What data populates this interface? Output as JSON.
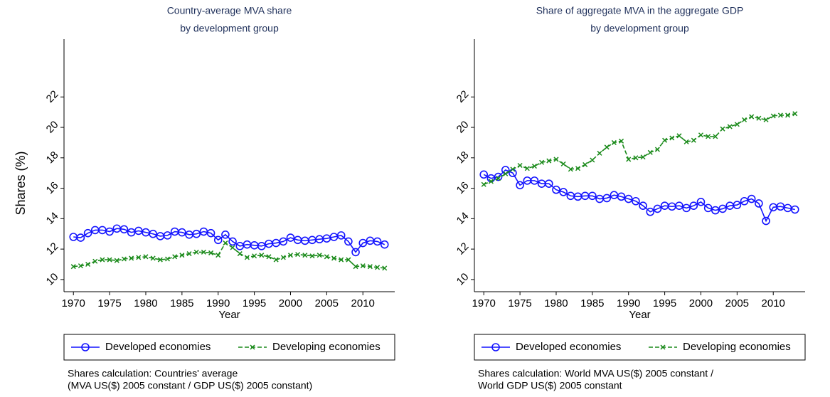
{
  "chart_data": [
    {
      "type": "line",
      "title": "Country-average MVA share",
      "subtitle": "by development group",
      "x_label": "Year",
      "y_label": "Shares (%)",
      "note": [
        "Shares calculation: Countries' average",
        "(MVA US($) 2005 constant / GDP US($) 2005 constant)"
      ],
      "x": [
        1970,
        1971,
        1972,
        1973,
        1974,
        1975,
        1976,
        1977,
        1978,
        1979,
        1980,
        1981,
        1982,
        1983,
        1984,
        1985,
        1986,
        1987,
        1988,
        1989,
        1990,
        1991,
        1992,
        1993,
        1994,
        1995,
        1996,
        1997,
        1998,
        1999,
        2000,
        2001,
        2002,
        2003,
        2004,
        2005,
        2006,
        2007,
        2008,
        2009,
        2010,
        2011,
        2012,
        2013
      ],
      "xlim": [
        1968.7,
        2014.4
      ],
      "xticks": [
        1970,
        1975,
        1980,
        1985,
        1990,
        1995,
        2000,
        2005,
        2010
      ],
      "ylim": [
        9.2,
        25.8
      ],
      "yticks": [
        10,
        12,
        14,
        16,
        18,
        20,
        22
      ],
      "series": [
        {
          "name": "Developed economies",
          "color": "#1414ff",
          "values": [
            12.8,
            12.75,
            13.05,
            13.25,
            13.25,
            13.15,
            13.35,
            13.3,
            13.1,
            13.2,
            13.1,
            13.0,
            12.85,
            12.9,
            13.15,
            13.1,
            12.95,
            13.0,
            13.15,
            13.05,
            12.6,
            12.95,
            12.5,
            12.2,
            12.3,
            12.25,
            12.2,
            12.35,
            12.4,
            12.5,
            12.75,
            12.6,
            12.55,
            12.6,
            12.65,
            12.7,
            12.8,
            12.9,
            12.5,
            11.8,
            12.4,
            12.55,
            12.5,
            12.3
          ]
        },
        {
          "name": "Developing economies",
          "color": "#1a8a1a",
          "values": [
            10.85,
            10.9,
            11.0,
            11.2,
            11.3,
            11.3,
            11.25,
            11.35,
            11.4,
            11.45,
            11.5,
            11.4,
            11.3,
            11.35,
            11.5,
            11.6,
            11.7,
            11.8,
            11.8,
            11.75,
            11.6,
            12.4,
            12.1,
            11.7,
            11.45,
            11.55,
            11.6,
            11.5,
            11.3,
            11.45,
            11.6,
            11.65,
            11.6,
            11.55,
            11.6,
            11.5,
            11.4,
            11.3,
            11.3,
            10.85,
            10.9,
            10.85,
            10.8,
            10.75
          ]
        }
      ]
    },
    {
      "type": "line",
      "title": "Share of aggregate MVA in the aggregate GDP",
      "subtitle": "by development group",
      "x_label": "Year",
      "note": [
        "Shares calculation: World MVA US($) 2005 constant /",
        "World GDP US($) 2005 constant"
      ],
      "x": [
        1970,
        1971,
        1972,
        1973,
        1974,
        1975,
        1976,
        1977,
        1978,
        1979,
        1980,
        1981,
        1982,
        1983,
        1984,
        1985,
        1986,
        1987,
        1988,
        1989,
        1990,
        1991,
        1992,
        1993,
        1994,
        1995,
        1996,
        1997,
        1998,
        1999,
        2000,
        2001,
        2002,
        2003,
        2004,
        2005,
        2006,
        2007,
        2008,
        2009,
        2010,
        2011,
        2012,
        2013
      ],
      "xlim": [
        1968.7,
        2014.4
      ],
      "xticks": [
        1970,
        1975,
        1980,
        1985,
        1990,
        1995,
        2000,
        2005,
        2010
      ],
      "ylim": [
        9.2,
        25.8
      ],
      "yticks": [
        10,
        12,
        14,
        16,
        18,
        20,
        22
      ],
      "series": [
        {
          "name": "Developed economies",
          "color": "#1414ff",
          "values": [
            16.9,
            16.65,
            16.75,
            17.2,
            17.0,
            16.2,
            16.5,
            16.5,
            16.3,
            16.3,
            15.9,
            15.75,
            15.5,
            15.45,
            15.5,
            15.5,
            15.3,
            15.35,
            15.55,
            15.45,
            15.3,
            15.15,
            14.85,
            14.45,
            14.65,
            14.85,
            14.8,
            14.85,
            14.7,
            14.85,
            15.1,
            14.7,
            14.55,
            14.65,
            14.85,
            14.9,
            15.15,
            15.3,
            15.0,
            13.85,
            14.75,
            14.8,
            14.7,
            14.6
          ]
        },
        {
          "name": "Developing economies",
          "color": "#1a8a1a",
          "values": [
            16.25,
            16.45,
            16.65,
            16.95,
            17.25,
            17.5,
            17.3,
            17.45,
            17.7,
            17.8,
            17.9,
            17.6,
            17.25,
            17.3,
            17.55,
            17.85,
            18.3,
            18.7,
            19.0,
            19.1,
            17.9,
            18.0,
            18.05,
            18.35,
            18.55,
            19.15,
            19.3,
            19.45,
            19.05,
            19.15,
            19.5,
            19.4,
            19.4,
            19.9,
            20.05,
            20.2,
            20.5,
            20.7,
            20.6,
            20.5,
            20.75,
            20.8,
            20.8,
            20.9
          ]
        }
      ]
    }
  ]
}
